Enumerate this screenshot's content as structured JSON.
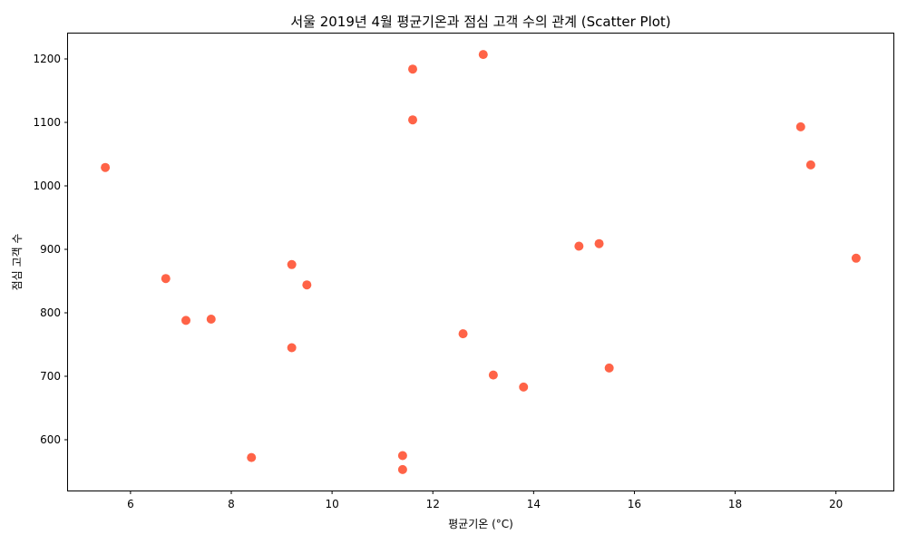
{
  "chart_data": {
    "type": "scatter",
    "title": "서울 2019년 4월 평균기온과 점심 고객 수의 관계 (Scatter Plot)",
    "xlabel": "평균기온 (°C)",
    "ylabel": "점심 고객 수",
    "xlim": [
      4.76,
      21.14
    ],
    "ylim": [
      520,
      1240
    ],
    "xticks": [
      6,
      8,
      10,
      12,
      14,
      16,
      18,
      20
    ],
    "yticks": [
      600,
      700,
      800,
      900,
      1000,
      1100,
      1200
    ],
    "grid": false,
    "color": "#ff6347",
    "points": [
      {
        "x": 5.5,
        "y": 1029
      },
      {
        "x": 6.7,
        "y": 854
      },
      {
        "x": 7.1,
        "y": 788
      },
      {
        "x": 7.6,
        "y": 790
      },
      {
        "x": 8.4,
        "y": 572
      },
      {
        "x": 9.2,
        "y": 876
      },
      {
        "x": 9.2,
        "y": 745
      },
      {
        "x": 9.5,
        "y": 844
      },
      {
        "x": 11.4,
        "y": 575
      },
      {
        "x": 11.4,
        "y": 553
      },
      {
        "x": 11.6,
        "y": 1184
      },
      {
        "x": 11.6,
        "y": 1104
      },
      {
        "x": 12.6,
        "y": 767
      },
      {
        "x": 13.0,
        "y": 1207
      },
      {
        "x": 13.2,
        "y": 702
      },
      {
        "x": 13.8,
        "y": 683
      },
      {
        "x": 14.9,
        "y": 905
      },
      {
        "x": 15.3,
        "y": 909
      },
      {
        "x": 15.5,
        "y": 713
      },
      {
        "x": 19.3,
        "y": 1093
      },
      {
        "x": 19.5,
        "y": 1033
      },
      {
        "x": 20.4,
        "y": 886
      }
    ]
  }
}
